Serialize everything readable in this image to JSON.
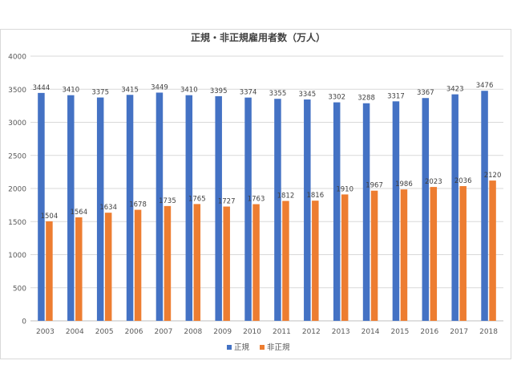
{
  "chart_data": {
    "type": "bar",
    "title": "正規・非正規雇用者数（万人）",
    "xlabel": "",
    "ylabel": "",
    "categories": [
      "2003",
      "2004",
      "2005",
      "2006",
      "2007",
      "2008",
      "2009",
      "2010",
      "2011",
      "2012",
      "2013",
      "2014",
      "2015",
      "2016",
      "2017",
      "2018"
    ],
    "series": [
      {
        "name": "正規",
        "color": "#4472C4",
        "values": [
          3444,
          3410,
          3375,
          3415,
          3449,
          3410,
          3395,
          3374,
          3355,
          3345,
          3302,
          3288,
          3317,
          3367,
          3423,
          3476
        ]
      },
      {
        "name": "非正規",
        "color": "#ED7D31",
        "values": [
          1504,
          1564,
          1634,
          1678,
          1735,
          1765,
          1727,
          1763,
          1812,
          1816,
          1910,
          1967,
          1986,
          2023,
          2036,
          2120
        ]
      }
    ],
    "ylim": [
      0,
      4000
    ],
    "yticks": [
      0,
      500,
      1000,
      1500,
      2000,
      2500,
      3000,
      3500,
      4000
    ],
    "grid": true,
    "data_labels": true,
    "legend_position": "bottom"
  }
}
